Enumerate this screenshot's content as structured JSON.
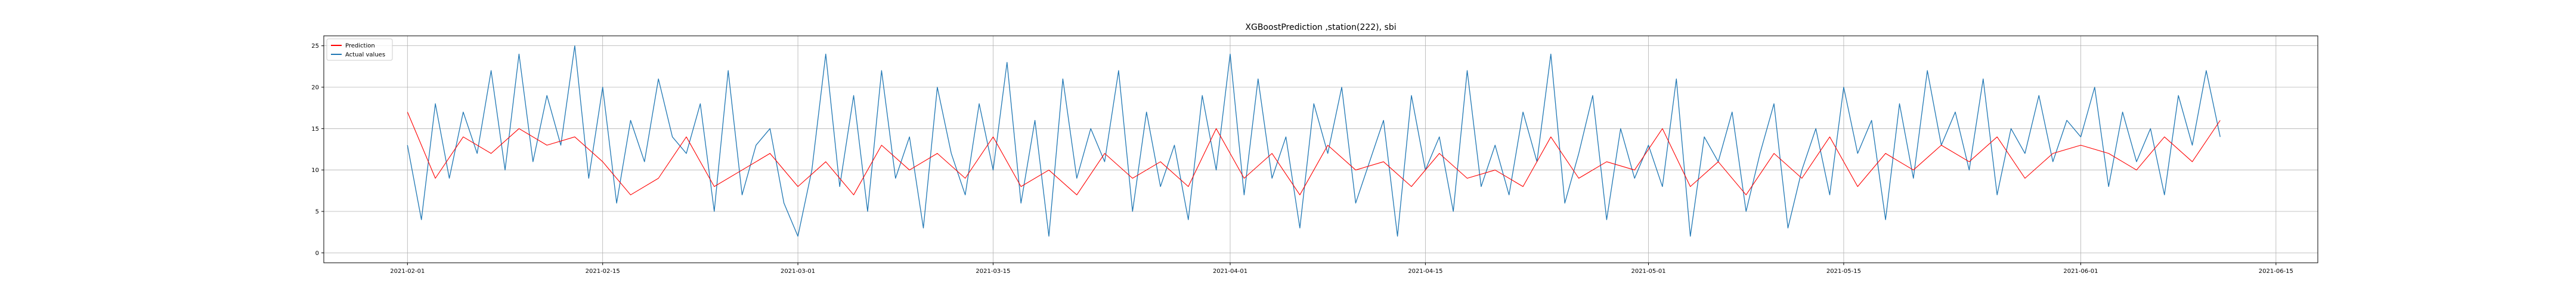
{
  "chart_data": {
    "type": "line",
    "title": "XGBoostPrediction ,station(222), sbi",
    "xlabel": "",
    "ylabel": "",
    "x_range": [
      "2021-01-26",
      "2021-06-18"
    ],
    "ylim": [
      -1.2,
      26.2
    ],
    "grid": true,
    "legend_position": "top-left",
    "x_tick_labels": [
      "2021-02-01",
      "2021-02-15",
      "2021-03-01",
      "2021-03-15",
      "2021-04-01",
      "2021-04-15",
      "2021-05-01",
      "2021-05-15",
      "2021-06-01",
      "2021-06-15"
    ],
    "y_ticks": [
      0,
      5,
      10,
      15,
      20,
      25
    ],
    "series": [
      {
        "name": "Prediction",
        "color": "#ff0000",
        "x": [
          "2021-02-01",
          "2021-02-03",
          "2021-02-05",
          "2021-02-07",
          "2021-02-09",
          "2021-02-11",
          "2021-02-13",
          "2021-02-15",
          "2021-02-17",
          "2021-02-19",
          "2021-02-21",
          "2021-02-23",
          "2021-02-25",
          "2021-02-27",
          "2021-03-01",
          "2021-03-03",
          "2021-03-05",
          "2021-03-07",
          "2021-03-09",
          "2021-03-11",
          "2021-03-13",
          "2021-03-15",
          "2021-03-17",
          "2021-03-19",
          "2021-03-21",
          "2021-03-23",
          "2021-03-25",
          "2021-03-27",
          "2021-03-29",
          "2021-03-31",
          "2021-04-02",
          "2021-04-04",
          "2021-04-06",
          "2021-04-08",
          "2021-04-10",
          "2021-04-12",
          "2021-04-14",
          "2021-04-16",
          "2021-04-18",
          "2021-04-20",
          "2021-04-22",
          "2021-04-24",
          "2021-04-26",
          "2021-04-28",
          "2021-04-30",
          "2021-05-02",
          "2021-05-04",
          "2021-05-06",
          "2021-05-08",
          "2021-05-10",
          "2021-05-12",
          "2021-05-14",
          "2021-05-16",
          "2021-05-18",
          "2021-05-20",
          "2021-05-22",
          "2021-05-24",
          "2021-05-26",
          "2021-05-28",
          "2021-05-30",
          "2021-06-01",
          "2021-06-03",
          "2021-06-05",
          "2021-06-07",
          "2021-06-09",
          "2021-06-11"
        ],
        "values": [
          17,
          9,
          14,
          12,
          15,
          13,
          14,
          11,
          7,
          9,
          14,
          8,
          10,
          12,
          8,
          11,
          7,
          13,
          10,
          12,
          9,
          14,
          8,
          10,
          7,
          12,
          9,
          11,
          8,
          15,
          9,
          12,
          7,
          13,
          10,
          11,
          8,
          12,
          9,
          10,
          8,
          14,
          9,
          11,
          10,
          15,
          8,
          11,
          7,
          12,
          9,
          14,
          8,
          12,
          10,
          13,
          11,
          14,
          9,
          12,
          13,
          12,
          10,
          14,
          11,
          16
        ]
      },
      {
        "name": "Actual values",
        "color": "#1f77b4",
        "x": [
          "2021-02-01",
          "2021-02-02",
          "2021-02-03",
          "2021-02-04",
          "2021-02-05",
          "2021-02-06",
          "2021-02-07",
          "2021-02-08",
          "2021-02-09",
          "2021-02-10",
          "2021-02-11",
          "2021-02-12",
          "2021-02-13",
          "2021-02-14",
          "2021-02-15",
          "2021-02-16",
          "2021-02-17",
          "2021-02-18",
          "2021-02-19",
          "2021-02-20",
          "2021-02-21",
          "2021-02-22",
          "2021-02-23",
          "2021-02-24",
          "2021-02-25",
          "2021-02-26",
          "2021-02-27",
          "2021-02-28",
          "2021-03-01",
          "2021-03-02",
          "2021-03-03",
          "2021-03-04",
          "2021-03-05",
          "2021-03-06",
          "2021-03-07",
          "2021-03-08",
          "2021-03-09",
          "2021-03-10",
          "2021-03-11",
          "2021-03-12",
          "2021-03-13",
          "2021-03-14",
          "2021-03-15",
          "2021-03-16",
          "2021-03-17",
          "2021-03-18",
          "2021-03-19",
          "2021-03-20",
          "2021-03-21",
          "2021-03-22",
          "2021-03-23",
          "2021-03-24",
          "2021-03-25",
          "2021-03-26",
          "2021-03-27",
          "2021-03-28",
          "2021-03-29",
          "2021-03-30",
          "2021-03-31",
          "2021-04-01",
          "2021-04-02",
          "2021-04-03",
          "2021-04-04",
          "2021-04-05",
          "2021-04-06",
          "2021-04-07",
          "2021-04-08",
          "2021-04-09",
          "2021-04-10",
          "2021-04-11",
          "2021-04-12",
          "2021-04-13",
          "2021-04-14",
          "2021-04-15",
          "2021-04-16",
          "2021-04-17",
          "2021-04-18",
          "2021-04-19",
          "2021-04-20",
          "2021-04-21",
          "2021-04-22",
          "2021-04-23",
          "2021-04-24",
          "2021-04-25",
          "2021-04-26",
          "2021-04-27",
          "2021-04-28",
          "2021-04-29",
          "2021-04-30",
          "2021-05-01",
          "2021-05-02",
          "2021-05-03",
          "2021-05-04",
          "2021-05-05",
          "2021-05-06",
          "2021-05-07",
          "2021-05-08",
          "2021-05-09",
          "2021-05-10",
          "2021-05-11",
          "2021-05-12",
          "2021-05-13",
          "2021-05-14",
          "2021-05-15",
          "2021-05-16",
          "2021-05-17",
          "2021-05-18",
          "2021-05-19",
          "2021-05-20",
          "2021-05-21",
          "2021-05-22",
          "2021-05-23",
          "2021-05-24",
          "2021-05-25",
          "2021-05-26",
          "2021-05-27",
          "2021-05-28",
          "2021-05-29",
          "2021-05-30",
          "2021-05-31",
          "2021-06-01",
          "2021-06-02",
          "2021-06-03",
          "2021-06-04",
          "2021-06-05",
          "2021-06-06",
          "2021-06-07",
          "2021-06-08",
          "2021-06-09",
          "2021-06-10",
          "2021-06-11"
        ],
        "values": [
          13,
          4,
          18,
          9,
          17,
          12,
          22,
          10,
          24,
          11,
          19,
          13,
          25,
          9,
          20,
          6,
          16,
          11,
          21,
          14,
          12,
          18,
          5,
          22,
          7,
          13,
          15,
          6,
          2,
          10,
          24,
          8,
          19,
          5,
          22,
          9,
          14,
          3,
          20,
          12,
          7,
          18,
          10,
          23,
          6,
          16,
          2,
          21,
          9,
          15,
          11,
          22,
          5,
          17,
          8,
          13,
          4,
          19,
          10,
          24,
          7,
          21,
          9,
          14,
          3,
          18,
          12,
          20,
          6,
          11,
          16,
          2,
          19,
          10,
          14,
          5,
          22,
          8,
          13,
          7,
          17,
          11,
          24,
          6,
          12,
          19,
          4,
          15,
          9,
          13,
          8,
          21,
          2,
          14,
          11,
          17,
          5,
          12,
          18,
          3,
          10,
          15,
          7,
          20,
          12,
          16,
          4,
          18,
          9,
          22,
          13,
          17,
          10,
          21,
          7,
          15,
          12,
          19,
          11,
          16,
          14,
          20,
          8,
          17,
          11,
          15,
          7,
          19,
          13,
          22,
          14
        ]
      }
    ]
  }
}
